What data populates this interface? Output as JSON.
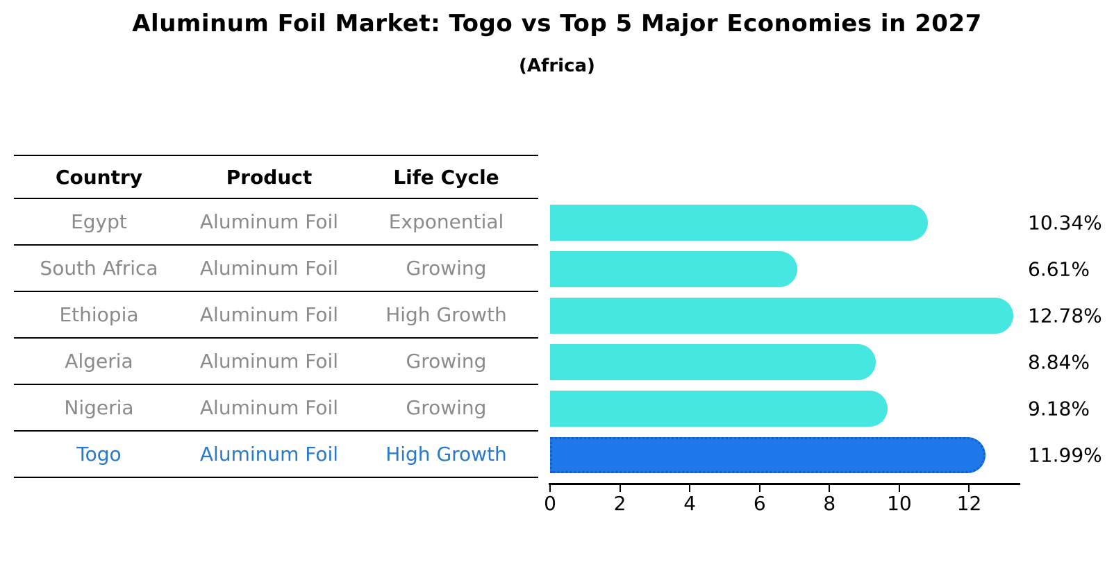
{
  "title": "Aluminum Foil Market: Togo vs Top 5 Major Economies in 2027",
  "subtitle": "(Africa)",
  "table": {
    "headers": [
      "Country",
      "Product",
      "Life Cycle"
    ],
    "rows": [
      {
        "country": "Egypt",
        "product": "Aluminum Foil",
        "life_cycle": "Exponential",
        "highlight": false
      },
      {
        "country": "South Africa",
        "product": "Aluminum Foil",
        "life_cycle": "Growing",
        "highlight": false
      },
      {
        "country": "Ethiopia",
        "product": "Aluminum Foil",
        "life_cycle": "High Growth",
        "highlight": false
      },
      {
        "country": "Algeria",
        "product": "Aluminum Foil",
        "life_cycle": "Growing",
        "highlight": false
      },
      {
        "country": "Nigeria",
        "product": "Aluminum Foil",
        "life_cycle": "Growing",
        "highlight": false
      },
      {
        "country": "Togo",
        "product": "Aluminum Foil",
        "life_cycle": "High Growth",
        "highlight": true
      }
    ]
  },
  "chart_data": {
    "type": "bar",
    "orientation": "horizontal",
    "title": "Aluminum Foil Market: Togo vs Top 5 Major Economies in 2027",
    "subtitle": "(Africa)",
    "categories": [
      "Egypt",
      "South Africa",
      "Ethiopia",
      "Algeria",
      "Nigeria",
      "Togo"
    ],
    "values": [
      10.34,
      6.61,
      12.78,
      8.84,
      9.18,
      11.99
    ],
    "value_labels": [
      "10.34%",
      "6.61%",
      "12.78%",
      "8.84%",
      "9.18%",
      "11.99%"
    ],
    "x_ticks": [
      0,
      2,
      4,
      6,
      8,
      10,
      12
    ],
    "x_tick_labels": [
      "0",
      "2",
      "4",
      "6",
      "8",
      "10",
      "12"
    ],
    "xlim": [
      0,
      13.4
    ],
    "grid": false,
    "legend": false,
    "highlight_index": 5,
    "bar_color": "#46e6e1",
    "highlight_color": "#1e78e8",
    "highlight_dot_color": "#0d5ed6",
    "highlight_text_color": "#2878cc",
    "row_text_color": "#8a8a8a"
  }
}
